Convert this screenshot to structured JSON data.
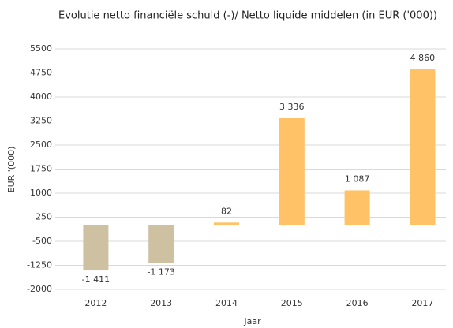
{
  "chart_data": {
    "type": "bar",
    "title": "Evolutie netto financiële schuld (-)/ Netto liquide middelen (in EUR ('000))",
    "x_label": "Jaar",
    "y_label": "EUR '(000)",
    "categories": [
      "2012",
      "2013",
      "2014",
      "2015",
      "2016",
      "2017"
    ],
    "values": [
      -1411,
      -1173,
      82,
      3336,
      1087,
      4860
    ],
    "value_labels": [
      "-1 411",
      "-1 173",
      "82",
      "3 336",
      "1 087",
      "4 860"
    ],
    "colors": [
      "#cdc1a2",
      "#cdc1a2",
      "#ffc266",
      "#ffc266",
      "#ffc266",
      "#ffc266"
    ],
    "ylim": [
      -2000,
      5500
    ],
    "yticks": [
      -2000,
      -1250,
      -500,
      250,
      1000,
      1750,
      2500,
      3250,
      4000,
      4750,
      5500
    ],
    "grid": true
  }
}
